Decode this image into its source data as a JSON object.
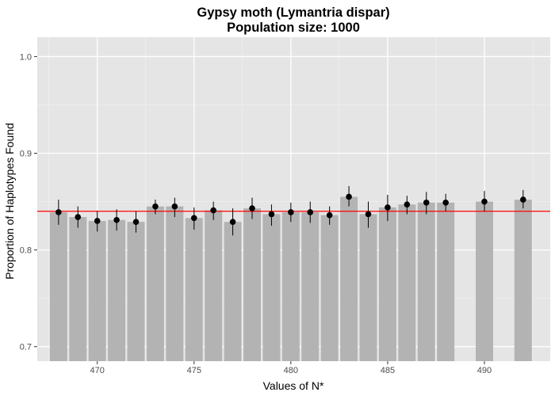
{
  "chart_data": {
    "type": "bar",
    "title": "Gypsy moth (Lymantria dispar)",
    "subtitle": "Population size: 1000",
    "xlabel": "Values of N*",
    "ylabel": "Proportion of Haplotypes Found",
    "xlim": [
      466.9,
      493.4
    ],
    "ylim": [
      0.685,
      1.02
    ],
    "x_ticks": [
      470,
      475,
      480,
      485,
      490
    ],
    "x_tick_labels": [
      "470",
      "475",
      "480",
      "485",
      "490"
    ],
    "y_ticks": [
      0.7,
      0.8,
      0.9,
      1.0
    ],
    "y_tick_labels": [
      "0.7",
      "0.8",
      "0.9",
      "1.0"
    ],
    "grid": true,
    "reference_line": {
      "y": 0.84,
      "color": "#ff0000"
    },
    "bar_color": "#b3b3b3",
    "point_color": "#000000",
    "panel_background": "#e5e5e5",
    "points": [
      {
        "x": 468,
        "y": 0.839,
        "ymin": 0.826,
        "ymax": 0.852
      },
      {
        "x": 469,
        "y": 0.834,
        "ymin": 0.823,
        "ymax": 0.845
      },
      {
        "x": 470,
        "y": 0.83,
        "ymin": 0.819,
        "ymax": 0.84
      },
      {
        "x": 471,
        "y": 0.831,
        "ymin": 0.82,
        "ymax": 0.842
      },
      {
        "x": 472,
        "y": 0.829,
        "ymin": 0.818,
        "ymax": 0.84
      },
      {
        "x": 473,
        "y": 0.845,
        "ymin": 0.837,
        "ymax": 0.852
      },
      {
        "x": 474,
        "y": 0.845,
        "ymin": 0.834,
        "ymax": 0.854
      },
      {
        "x": 475,
        "y": 0.833,
        "ymin": 0.821,
        "ymax": 0.844
      },
      {
        "x": 476,
        "y": 0.841,
        "ymin": 0.831,
        "ymax": 0.85
      },
      {
        "x": 477,
        "y": 0.829,
        "ymin": 0.815,
        "ymax": 0.843
      },
      {
        "x": 478,
        "y": 0.843,
        "ymin": 0.832,
        "ymax": 0.854
      },
      {
        "x": 479,
        "y": 0.837,
        "ymin": 0.825,
        "ymax": 0.847
      },
      {
        "x": 480,
        "y": 0.839,
        "ymin": 0.829,
        "ymax": 0.849
      },
      {
        "x": 481,
        "y": 0.839,
        "ymin": 0.828,
        "ymax": 0.85
      },
      {
        "x": 482,
        "y": 0.836,
        "ymin": 0.826,
        "ymax": 0.845
      },
      {
        "x": 483,
        "y": 0.855,
        "ymin": 0.845,
        "ymax": 0.866
      },
      {
        "x": 484,
        "y": 0.837,
        "ymin": 0.823,
        "ymax": 0.85
      },
      {
        "x": 485,
        "y": 0.844,
        "ymin": 0.83,
        "ymax": 0.857
      },
      {
        "x": 486,
        "y": 0.847,
        "ymin": 0.837,
        "ymax": 0.856
      },
      {
        "x": 487,
        "y": 0.849,
        "ymin": 0.837,
        "ymax": 0.86
      },
      {
        "x": 488,
        "y": 0.849,
        "ymin": 0.84,
        "ymax": 0.858
      },
      {
        "x": 490,
        "y": 0.85,
        "ymin": 0.84,
        "ymax": 0.861
      },
      {
        "x": 492,
        "y": 0.852,
        "ymin": 0.843,
        "ymax": 0.862
      }
    ]
  }
}
